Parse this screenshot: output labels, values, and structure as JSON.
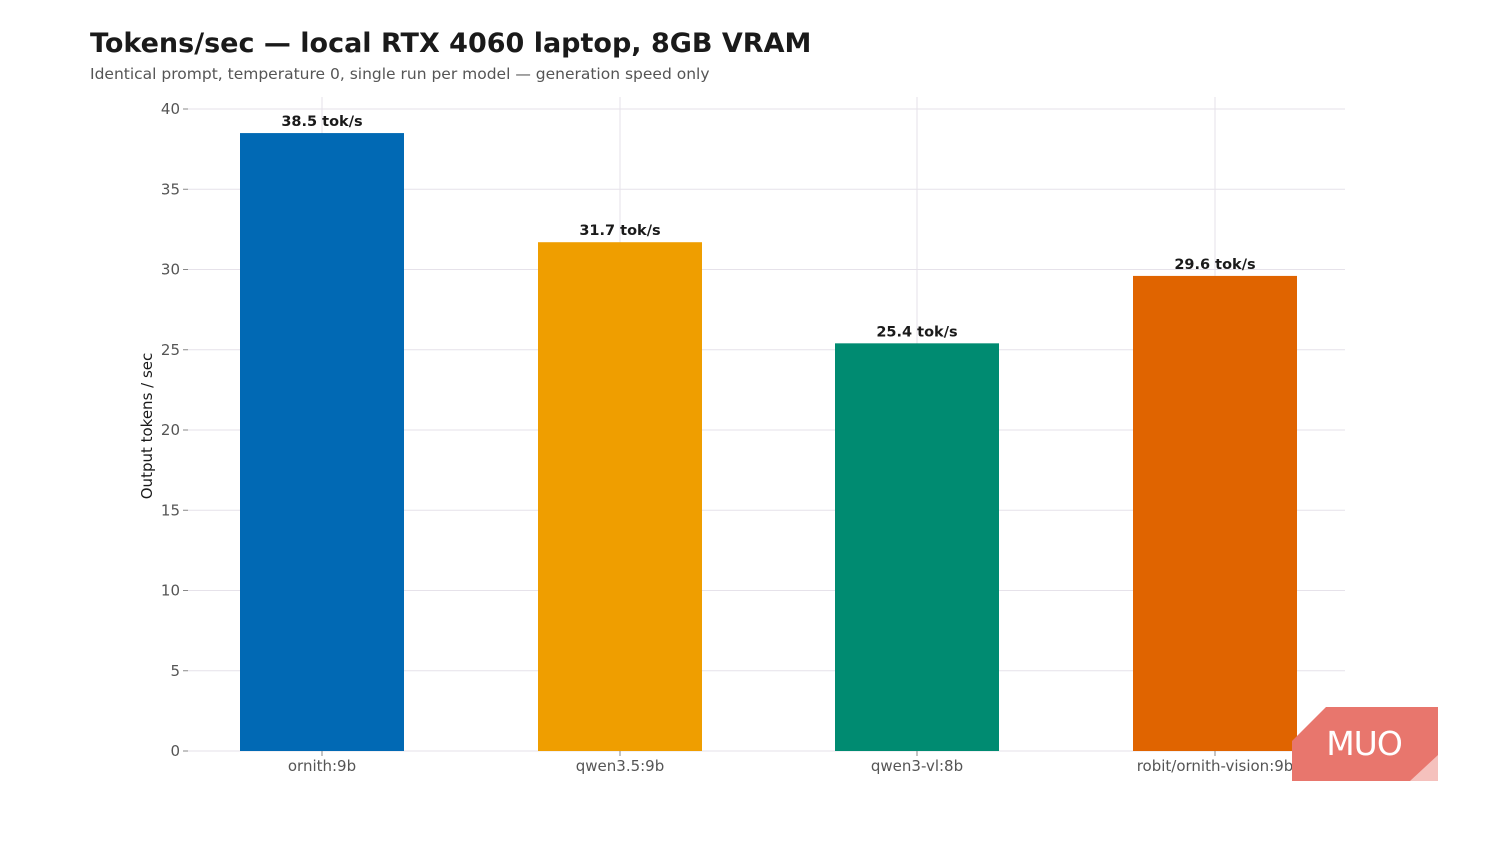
{
  "chart_data": {
    "type": "bar",
    "title": "Tokens/sec — local RTX 4060 laptop, 8GB VRAM",
    "subtitle": "Identical prompt, temperature 0, single run per model — generation speed only",
    "xlabel": "",
    "ylabel": "Output tokens / sec",
    "ylim": [
      0,
      40
    ],
    "yticks": [
      0,
      5,
      10,
      15,
      20,
      25,
      30,
      35,
      40
    ],
    "grid": true,
    "categories": [
      "ornith:9b",
      "qwen3.5:9b",
      "qwen3-vl:8b",
      "robit/ornith-vision:9b"
    ],
    "values": [
      38.5,
      31.7,
      25.4,
      29.6
    ],
    "data_labels": [
      "38.5 tok/s",
      "31.7 tok/s",
      "25.4 tok/s",
      "29.6 tok/s"
    ],
    "colors": [
      "#0169b4",
      "#ef9e00",
      "#008b71",
      "#e06400"
    ]
  },
  "watermark": {
    "text": "MUO",
    "color": "#e8766d",
    "icon": "muo-logo-icon"
  }
}
